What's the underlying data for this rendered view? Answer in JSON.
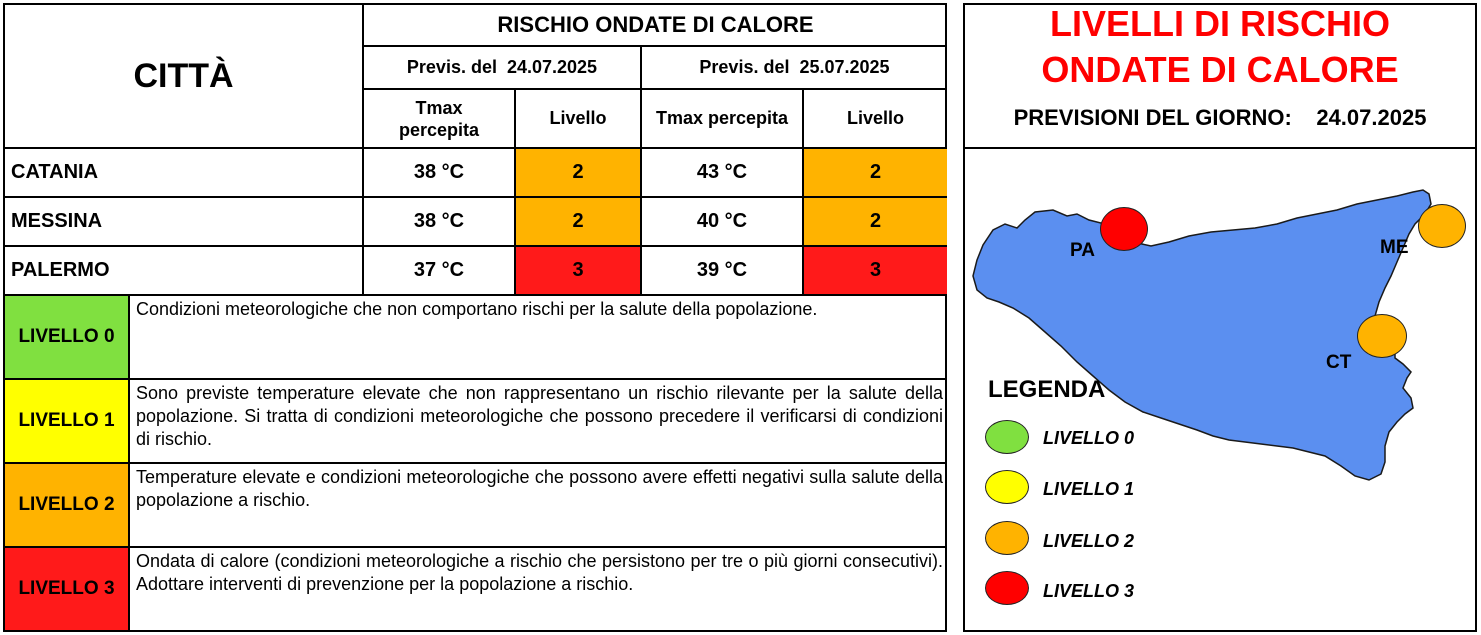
{
  "table": {
    "city_header": "CITTÀ",
    "main_header": "RISCHIO ONDATE DI CALORE",
    "forecasts": [
      {
        "label": "Previs. del",
        "date": "24.07.2025",
        "tmax_label_1": "Tmax",
        "tmax_label_2": "percepita",
        "level_label": "Livello"
      },
      {
        "label": "Previs. del",
        "date": "25.07.2025",
        "tmax_label": "Tmax percepita",
        "level_label": "Livello"
      }
    ],
    "rows": [
      {
        "city": "CATANIA",
        "t1": "38 °C",
        "l1": "2",
        "t2": "43 °C",
        "l2": "2"
      },
      {
        "city": "MESSINA",
        "t1": "38 °C",
        "l1": "2",
        "t2": "40 °C",
        "l2": "2"
      },
      {
        "city": "PALERMO",
        "t1": "37 °C",
        "l1": "3",
        "t2": "39 °C",
        "l2": "3"
      }
    ]
  },
  "levels": [
    {
      "name": "LIVELLO 0",
      "color": "#80e040",
      "text": "Condizioni meteorologiche che non comportano rischi per la salute della popolazione."
    },
    {
      "name": "LIVELLO 1",
      "color": "#ffff00",
      "text": "Sono previste temperature elevate che non rappresentano un rischio rilevante per la salute della popolazione. Si tratta di condizioni meteorologiche che possono precedere il verificarsi di condizioni di rischio."
    },
    {
      "name": "LIVELLO 2",
      "color": "#ffb300",
      "text": "Temperature elevate e condizioni meteorologiche che possono avere effetti negativi sulla salute della popolazione a rischio."
    },
    {
      "name": "LIVELLO 3",
      "color": "#ff0000",
      "text": "Ondata di calore (condizioni meteorologiche a rischio che persistono per tre o più giorni consecutivi). Adottare interventi di prevenzione per la popolazione a rischio."
    }
  ],
  "panel": {
    "title_1": "LIVELLI DI RISCHIO",
    "title_2": "ONDATE DI CALORE",
    "subtitle": "PREVISIONI DEL GIORNO:",
    "date": "24.07.2025",
    "legend_title": "LEGENDA",
    "legend": [
      "LIVELLO 0",
      "LIVELLO 1",
      "LIVELLO 2",
      "LIVELLO 3"
    ],
    "cities": [
      {
        "code": "PA",
        "level": "3"
      },
      {
        "code": "ME",
        "level": "2"
      },
      {
        "code": "CT",
        "level": "2"
      }
    ],
    "colors": {
      "title": "#ff0000",
      "sea_land": "#5b8ff0",
      "level2": "#ffb300",
      "level3": "#ff0000"
    }
  }
}
